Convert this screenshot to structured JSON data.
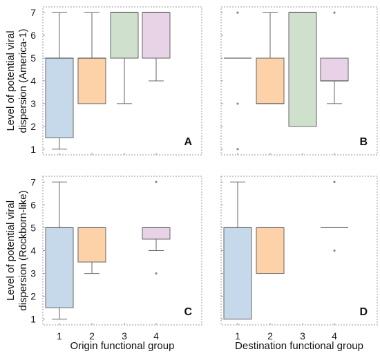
{
  "chart_data": [
    {
      "type": "box",
      "panel": "A",
      "ylabel": "Level of potential viral dispersion (America-1)",
      "ylabel_lines": [
        "Level of potential viral",
        "dispersion (America-1)"
      ],
      "xlabel": "",
      "categories": [
        "1",
        "2",
        "3",
        "4"
      ],
      "yticks": [
        1,
        2,
        3,
        4,
        5,
        6,
        7
      ],
      "ylim": [
        0.75,
        7.25
      ],
      "boxes": [
        {
          "category": "1",
          "q1": 1.5,
          "median": 5,
          "q3": 5,
          "whisker_low": 1,
          "whisker_high": 7,
          "outliers": [],
          "color": "#c5d9ea"
        },
        {
          "category": "2",
          "q1": 3,
          "median": 5,
          "q3": 5,
          "whisker_low": 3,
          "whisker_high": 7,
          "outliers": [],
          "color": "#fdd2a8"
        },
        {
          "category": "3",
          "q1": 5,
          "median": 7,
          "q3": 7,
          "whisker_low": 3,
          "whisker_high": 7,
          "outliers": [],
          "color": "#cfe0cd"
        },
        {
          "category": "4",
          "q1": 5,
          "median": 7,
          "q3": 7,
          "whisker_low": 4,
          "whisker_high": 7,
          "outliers": [],
          "color": "#e8d2e5"
        }
      ]
    },
    {
      "type": "box",
      "panel": "B",
      "ylabel": "",
      "xlabel": "",
      "categories": [
        "1",
        "2",
        "3",
        "4"
      ],
      "yticks": [
        1,
        2,
        3,
        4,
        5,
        6,
        7
      ],
      "ylim": [
        0.75,
        7.25
      ],
      "boxes": [
        {
          "category": "1",
          "q1": 5,
          "median": 5,
          "q3": 5,
          "whisker_low": 5,
          "whisker_high": 5,
          "outliers": [
            1,
            3,
            7
          ],
          "color": "#c5d9ea"
        },
        {
          "category": "2",
          "q1": 3,
          "median": 3,
          "q3": 5,
          "whisker_low": 3,
          "whisker_high": 7,
          "outliers": [],
          "color": "#fdd2a8"
        },
        {
          "category": "3",
          "q1": 2,
          "median": 7,
          "q3": 7,
          "whisker_low": 2,
          "whisker_high": 7,
          "outliers": [],
          "color": "#cfe0cd"
        },
        {
          "category": "4",
          "q1": 4,
          "median": 4,
          "q3": 5,
          "whisker_low": 3,
          "whisker_high": 5,
          "outliers": [
            7
          ],
          "color": "#e8d2e5"
        }
      ]
    },
    {
      "type": "box",
      "panel": "C",
      "ylabel": "Level of potential viral dispersion (Rockborn-like)",
      "ylabel_lines": [
        "Level of potential viral",
        "dispersion (Rockborn-like)"
      ],
      "xlabel": "Origin functional group",
      "categories": [
        "1",
        "2",
        "3",
        "4"
      ],
      "yticks": [
        1,
        2,
        3,
        4,
        5,
        6,
        7
      ],
      "ylim": [
        0.75,
        7.25
      ],
      "boxes": [
        {
          "category": "1",
          "q1": 1.5,
          "median": 5,
          "q3": 5,
          "whisker_low": 1,
          "whisker_high": 7,
          "outliers": [],
          "color": "#c5d9ea"
        },
        {
          "category": "2",
          "q1": 3.5,
          "median": 5,
          "q3": 5,
          "whisker_low": 3,
          "whisker_high": 5,
          "outliers": [],
          "color": "#fdd2a8"
        },
        {
          "category": "4",
          "q1": 4.5,
          "median": 5,
          "q3": 5,
          "whisker_low": 4,
          "whisker_high": 5,
          "outliers": [
            3,
            7
          ],
          "color": "#e8d2e5"
        }
      ]
    },
    {
      "type": "box",
      "panel": "D",
      "ylabel": "",
      "xlabel": "Destination functional group",
      "categories": [
        "1",
        "2",
        "3",
        "4"
      ],
      "yticks": [
        1,
        2,
        3,
        4,
        5,
        6,
        7
      ],
      "ylim": [
        0.75,
        7.25
      ],
      "boxes": [
        {
          "category": "1",
          "q1": 1,
          "median": 5,
          "q3": 5,
          "whisker_low": 1,
          "whisker_high": 7,
          "outliers": [],
          "color": "#c5d9ea"
        },
        {
          "category": "2",
          "q1": 3,
          "median": 5,
          "q3": 5,
          "whisker_low": 3,
          "whisker_high": 5,
          "outliers": [],
          "color": "#fdd2a8"
        },
        {
          "category": "4",
          "q1": 5,
          "median": 5,
          "q3": 5,
          "whisker_low": 5,
          "whisker_high": 5,
          "outliers": [
            4,
            7
          ],
          "color": "#e8d2e5"
        }
      ]
    }
  ]
}
